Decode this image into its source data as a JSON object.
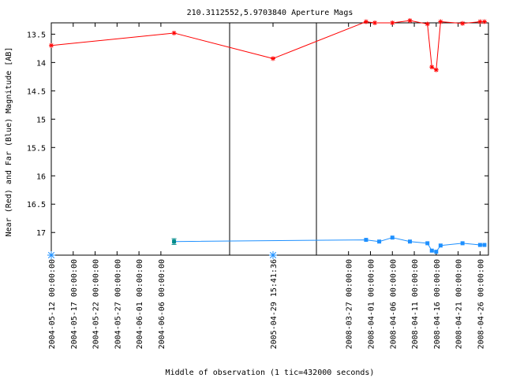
{
  "chart_data": {
    "type": "scatter",
    "title": "210.3112552,5.9703840   Aperture Mags",
    "xlabel": "Middle of observation (1 tic=432000 seconds)",
    "ylabel": "Near (Red) and Far (Blue) Magnitude [AB]",
    "y_axis": {
      "ylim": [
        13.3,
        17.4
      ],
      "reversed": true,
      "ticks": [
        "13.5",
        "14",
        "14.5",
        "15",
        "15.5",
        "16",
        "16.5",
        "17"
      ]
    },
    "x_segments": [
      {
        "ticks": [
          "2004-05-12 00:00:00",
          "2004-05-17 00:00:00",
          "2004-05-22 00:00:00",
          "2004-05-27 00:00:00",
          "2004-06-01 00:00:00",
          "2004-06-06 00:00:00"
        ]
      },
      {
        "ticks": [
          "2005-04-29 15:41:36"
        ]
      },
      {
        "ticks": [
          "2008-03-27 00:00:00",
          "2008-04-01 00:00:00",
          "2008-04-06 00:00:00",
          "2008-04-11 00:00:00",
          "2008-04-16 00:00:00",
          "2008-04-21 00:00:00",
          "2008-04-26 00:00:00"
        ]
      }
    ],
    "series": [
      {
        "color": "#ff0000",
        "marker": "star",
        "points": [
          {
            "x": "2004-05-12",
            "y": 13.7
          },
          {
            "x": "2004-06-09",
            "y": 13.48
          },
          {
            "x": "2005-04-29",
            "y": 13.93
          },
          {
            "x": "2008-03-31",
            "y": 13.28
          },
          {
            "x": "2008-04-02",
            "y": 13.3
          },
          {
            "x": "2008-04-06",
            "y": 13.3
          },
          {
            "x": "2008-04-10",
            "y": 13.26
          },
          {
            "x": "2008-04-14",
            "y": 13.32
          },
          {
            "x": "2008-04-15",
            "y": 14.08
          },
          {
            "x": "2008-04-16",
            "y": 14.13
          },
          {
            "x": "2008-04-17",
            "y": 13.28
          },
          {
            "x": "2008-04-22",
            "y": 13.31
          },
          {
            "x": "2008-04-26",
            "y": 13.28
          },
          {
            "x": "2008-04-27",
            "y": 13.28
          }
        ]
      },
      {
        "color": "#1e90ff",
        "marker": "square",
        "points": [
          {
            "x": "2004-06-09",
            "y": 17.16,
            "err": 0.05,
            "color": "#008b8b"
          },
          {
            "x": "2008-03-31",
            "y": 17.13
          },
          {
            "x": "2008-04-03",
            "y": 17.16
          },
          {
            "x": "2008-04-06",
            "y": 17.09
          },
          {
            "x": "2008-04-10",
            "y": 17.16
          },
          {
            "x": "2008-04-14",
            "y": 17.19
          },
          {
            "x": "2008-04-15",
            "y": 17.32
          },
          {
            "x": "2008-04-16",
            "y": 17.34
          },
          {
            "x": "2008-04-17",
            "y": 17.23
          },
          {
            "x": "2008-04-22",
            "y": 17.19
          },
          {
            "x": "2008-04-26",
            "y": 17.22
          },
          {
            "x": "2008-04-27",
            "y": 17.22
          }
        ]
      }
    ],
    "far_only_markers": [
      {
        "x": "2004-05-12",
        "color": "#1e90ff",
        "marker": "asterisk"
      },
      {
        "x": "2005-04-29",
        "color": "#1e90ff",
        "marker": "asterisk"
      }
    ],
    "grid": false,
    "legend": "none"
  }
}
